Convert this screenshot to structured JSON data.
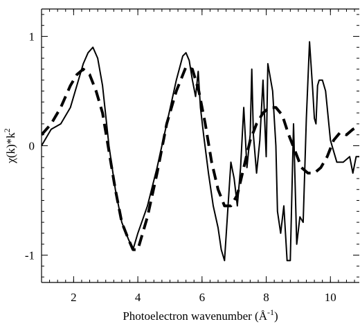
{
  "chart_data": {
    "type": "line",
    "title": "",
    "xlabel": "Photoelectron wavenumber (Å",
    "xlabel_sup": "-1",
    "xlabel_end": ")",
    "ylabel": "χ(k)*k",
    "ylabel_sup": "2",
    "xlim": [
      1.0,
      10.9
    ],
    "ylim": [
      -1.25,
      1.25
    ],
    "xticks": [
      2,
      4,
      6,
      8,
      10
    ],
    "xtick_labels": [
      "2",
      "4",
      "6",
      "8",
      "10"
    ],
    "yticks": [
      1,
      0,
      -1
    ],
    "ytick_labels": [
      "1",
      "0",
      "-1"
    ],
    "grid": false,
    "legend": "none",
    "series": [
      {
        "style": "solid",
        "x": [
          1.0,
          1.3,
          1.6,
          1.9,
          2.1,
          2.3,
          2.45,
          2.6,
          2.75,
          2.9,
          3.1,
          3.3,
          3.5,
          3.7,
          3.85,
          4.0,
          4.3,
          4.6,
          4.9,
          5.2,
          5.4,
          5.5,
          5.6,
          5.7,
          5.8,
          5.88,
          5.95,
          6.05,
          6.2,
          6.35,
          6.5,
          6.6,
          6.7,
          6.8,
          6.9,
          7.0,
          7.1,
          7.2,
          7.3,
          7.4,
          7.5,
          7.55,
          7.6,
          7.7,
          7.8,
          7.9,
          8.0,
          8.05,
          8.2,
          8.3,
          8.35,
          8.45,
          8.55,
          8.65,
          8.75,
          8.85,
          8.95,
          9.05,
          9.15,
          9.25,
          9.35,
          9.45,
          9.5,
          9.55,
          9.6,
          9.65,
          9.75,
          9.85,
          10.0,
          10.2,
          10.4,
          10.6,
          10.7,
          10.8,
          10.85,
          10.9
        ],
        "y": [
          0.0,
          0.15,
          0.2,
          0.35,
          0.55,
          0.75,
          0.85,
          0.9,
          0.8,
          0.55,
          0.0,
          -0.4,
          -0.7,
          -0.85,
          -0.95,
          -0.8,
          -0.55,
          -0.2,
          0.2,
          0.6,
          0.82,
          0.85,
          0.78,
          0.6,
          0.45,
          0.68,
          0.35,
          0.1,
          -0.25,
          -0.55,
          -0.75,
          -0.95,
          -1.05,
          -0.6,
          -0.15,
          -0.3,
          -0.55,
          -0.2,
          0.35,
          -0.2,
          0.1,
          0.7,
          0.1,
          -0.25,
          0.05,
          0.6,
          -0.1,
          0.75,
          0.5,
          0.0,
          -0.6,
          -0.8,
          -0.55,
          -1.05,
          -1.05,
          0.2,
          -0.9,
          -0.65,
          -0.7,
          0.25,
          0.95,
          0.5,
          0.25,
          0.2,
          0.55,
          0.6,
          0.6,
          0.5,
          0.05,
          -0.15,
          -0.15,
          -0.1,
          -0.25,
          -0.1,
          -0.1,
          -0.1
        ]
      },
      {
        "style": "dashed",
        "x": [
          1.0,
          1.3,
          1.6,
          1.9,
          2.1,
          2.3,
          2.5,
          2.7,
          2.9,
          3.1,
          3.3,
          3.5,
          3.7,
          3.85,
          4.0,
          4.3,
          4.6,
          4.9,
          5.2,
          5.5,
          5.7,
          5.9,
          6.1,
          6.3,
          6.5,
          6.7,
          6.9,
          7.1,
          7.3,
          7.5,
          7.7,
          7.9,
          8.1,
          8.3,
          8.5,
          8.7,
          8.9,
          9.1,
          9.3,
          9.5,
          9.7,
          9.9,
          10.1,
          10.3,
          10.5,
          10.7,
          10.9
        ],
        "y": [
          0.1,
          0.2,
          0.35,
          0.55,
          0.65,
          0.7,
          0.65,
          0.5,
          0.3,
          -0.05,
          -0.4,
          -0.7,
          -0.85,
          -0.95,
          -0.95,
          -0.65,
          -0.25,
          0.2,
          0.5,
          0.72,
          0.7,
          0.5,
          0.2,
          -0.15,
          -0.4,
          -0.55,
          -0.55,
          -0.45,
          -0.2,
          0.05,
          0.2,
          0.3,
          0.35,
          0.35,
          0.28,
          0.1,
          -0.05,
          -0.2,
          -0.25,
          -0.25,
          -0.2,
          -0.1,
          0.05,
          0.12,
          0.1,
          0.15,
          0.18
        ]
      }
    ]
  }
}
